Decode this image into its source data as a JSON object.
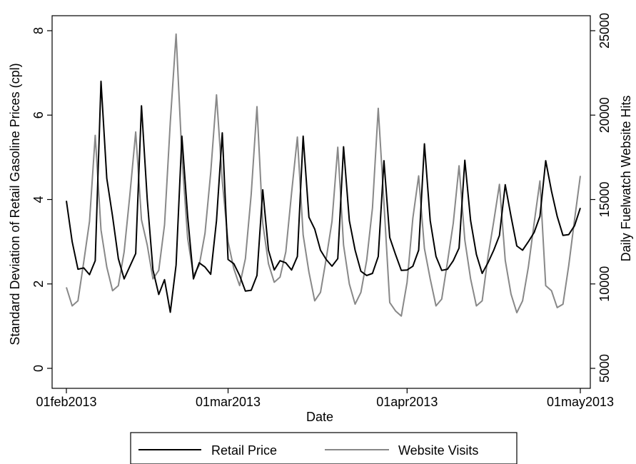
{
  "chart_data": {
    "type": "line",
    "title": "",
    "xlabel": "Date",
    "ylabel_left": "Standard Deviation of Retail Gasoline Prices (cpl)",
    "ylabel_right": "Daily Fuelwatch Website Hits",
    "x_tick_labels": [
      "01feb2013",
      "01mar2013",
      "01apr2013",
      "01may2013"
    ],
    "x_ticks_day_index": [
      0,
      28,
      59,
      89
    ],
    "x_range_day_index": [
      0,
      89
    ],
    "y_left": {
      "range": [
        0,
        8
      ],
      "ticks": [
        "0",
        "2",
        "4",
        "6",
        "8"
      ]
    },
    "y_right": {
      "range": [
        5000,
        25000
      ],
      "ticks": [
        "5000",
        "10000",
        "15000",
        "20000",
        "25000"
      ]
    },
    "grid": false,
    "legend": {
      "position": "bottom",
      "entries": [
        "Retail Price",
        "Website Visits"
      ]
    },
    "series": [
      {
        "name": "Retail Price",
        "axis": "left",
        "color": "#000000",
        "values": [
          3.97,
          3.0,
          2.35,
          2.38,
          2.22,
          2.55,
          6.8,
          4.5,
          3.6,
          2.6,
          2.12,
          2.42,
          2.72,
          6.22,
          4.0,
          2.33,
          1.75,
          2.1,
          1.33,
          2.45,
          5.5,
          3.6,
          2.12,
          2.5,
          2.4,
          2.23,
          3.5,
          5.58,
          2.58,
          2.48,
          2.2,
          1.83,
          1.85,
          2.2,
          4.23,
          2.8,
          2.33,
          2.55,
          2.5,
          2.33,
          2.65,
          5.5,
          3.58,
          3.3,
          2.8,
          2.58,
          2.42,
          2.6,
          5.25,
          3.5,
          2.8,
          2.3,
          2.2,
          2.25,
          2.65,
          4.92,
          3.1,
          2.7,
          2.32,
          2.33,
          2.42,
          2.8,
          5.32,
          3.5,
          2.65,
          2.32,
          2.35,
          2.55,
          2.85,
          4.93,
          3.5,
          2.7,
          2.25,
          2.5,
          2.8,
          3.15,
          4.35,
          3.6,
          2.9,
          2.8,
          3.0,
          3.22,
          3.6,
          4.92,
          4.2,
          3.6,
          3.15,
          3.17,
          3.38,
          3.8
        ]
      },
      {
        "name": "Website Visits",
        "axis": "right",
        "color": "#888888",
        "values": [
          9800,
          8700,
          9000,
          11300,
          13700,
          18800,
          13200,
          11000,
          9600,
          9900,
          11900,
          15300,
          19000,
          13800,
          12300,
          10300,
          10800,
          13500,
          19600,
          24800,
          17600,
          12700,
          10500,
          11100,
          13000,
          16600,
          21200,
          16100,
          12500,
          10900,
          9900,
          11500,
          15300,
          20500,
          13600,
          11200,
          10100,
          10400,
          11900,
          15400,
          18700,
          12900,
          10700,
          9000,
          9500,
          11500,
          13700,
          18100,
          12300,
          10000,
          8800,
          9500,
          11400,
          14500,
          20400,
          14800,
          8900,
          8400,
          8100,
          10100,
          13900,
          16400,
          12100,
          10300,
          8700,
          9100,
          11300,
          13600,
          17000,
          12600,
          10300,
          8700,
          9000,
          11600,
          13700,
          15900,
          11400,
          9400,
          8300,
          9000,
          11000,
          13600,
          16100,
          9900,
          9600,
          8600,
          8800,
          11100,
          13800,
          16400
        ]
      }
    ]
  }
}
